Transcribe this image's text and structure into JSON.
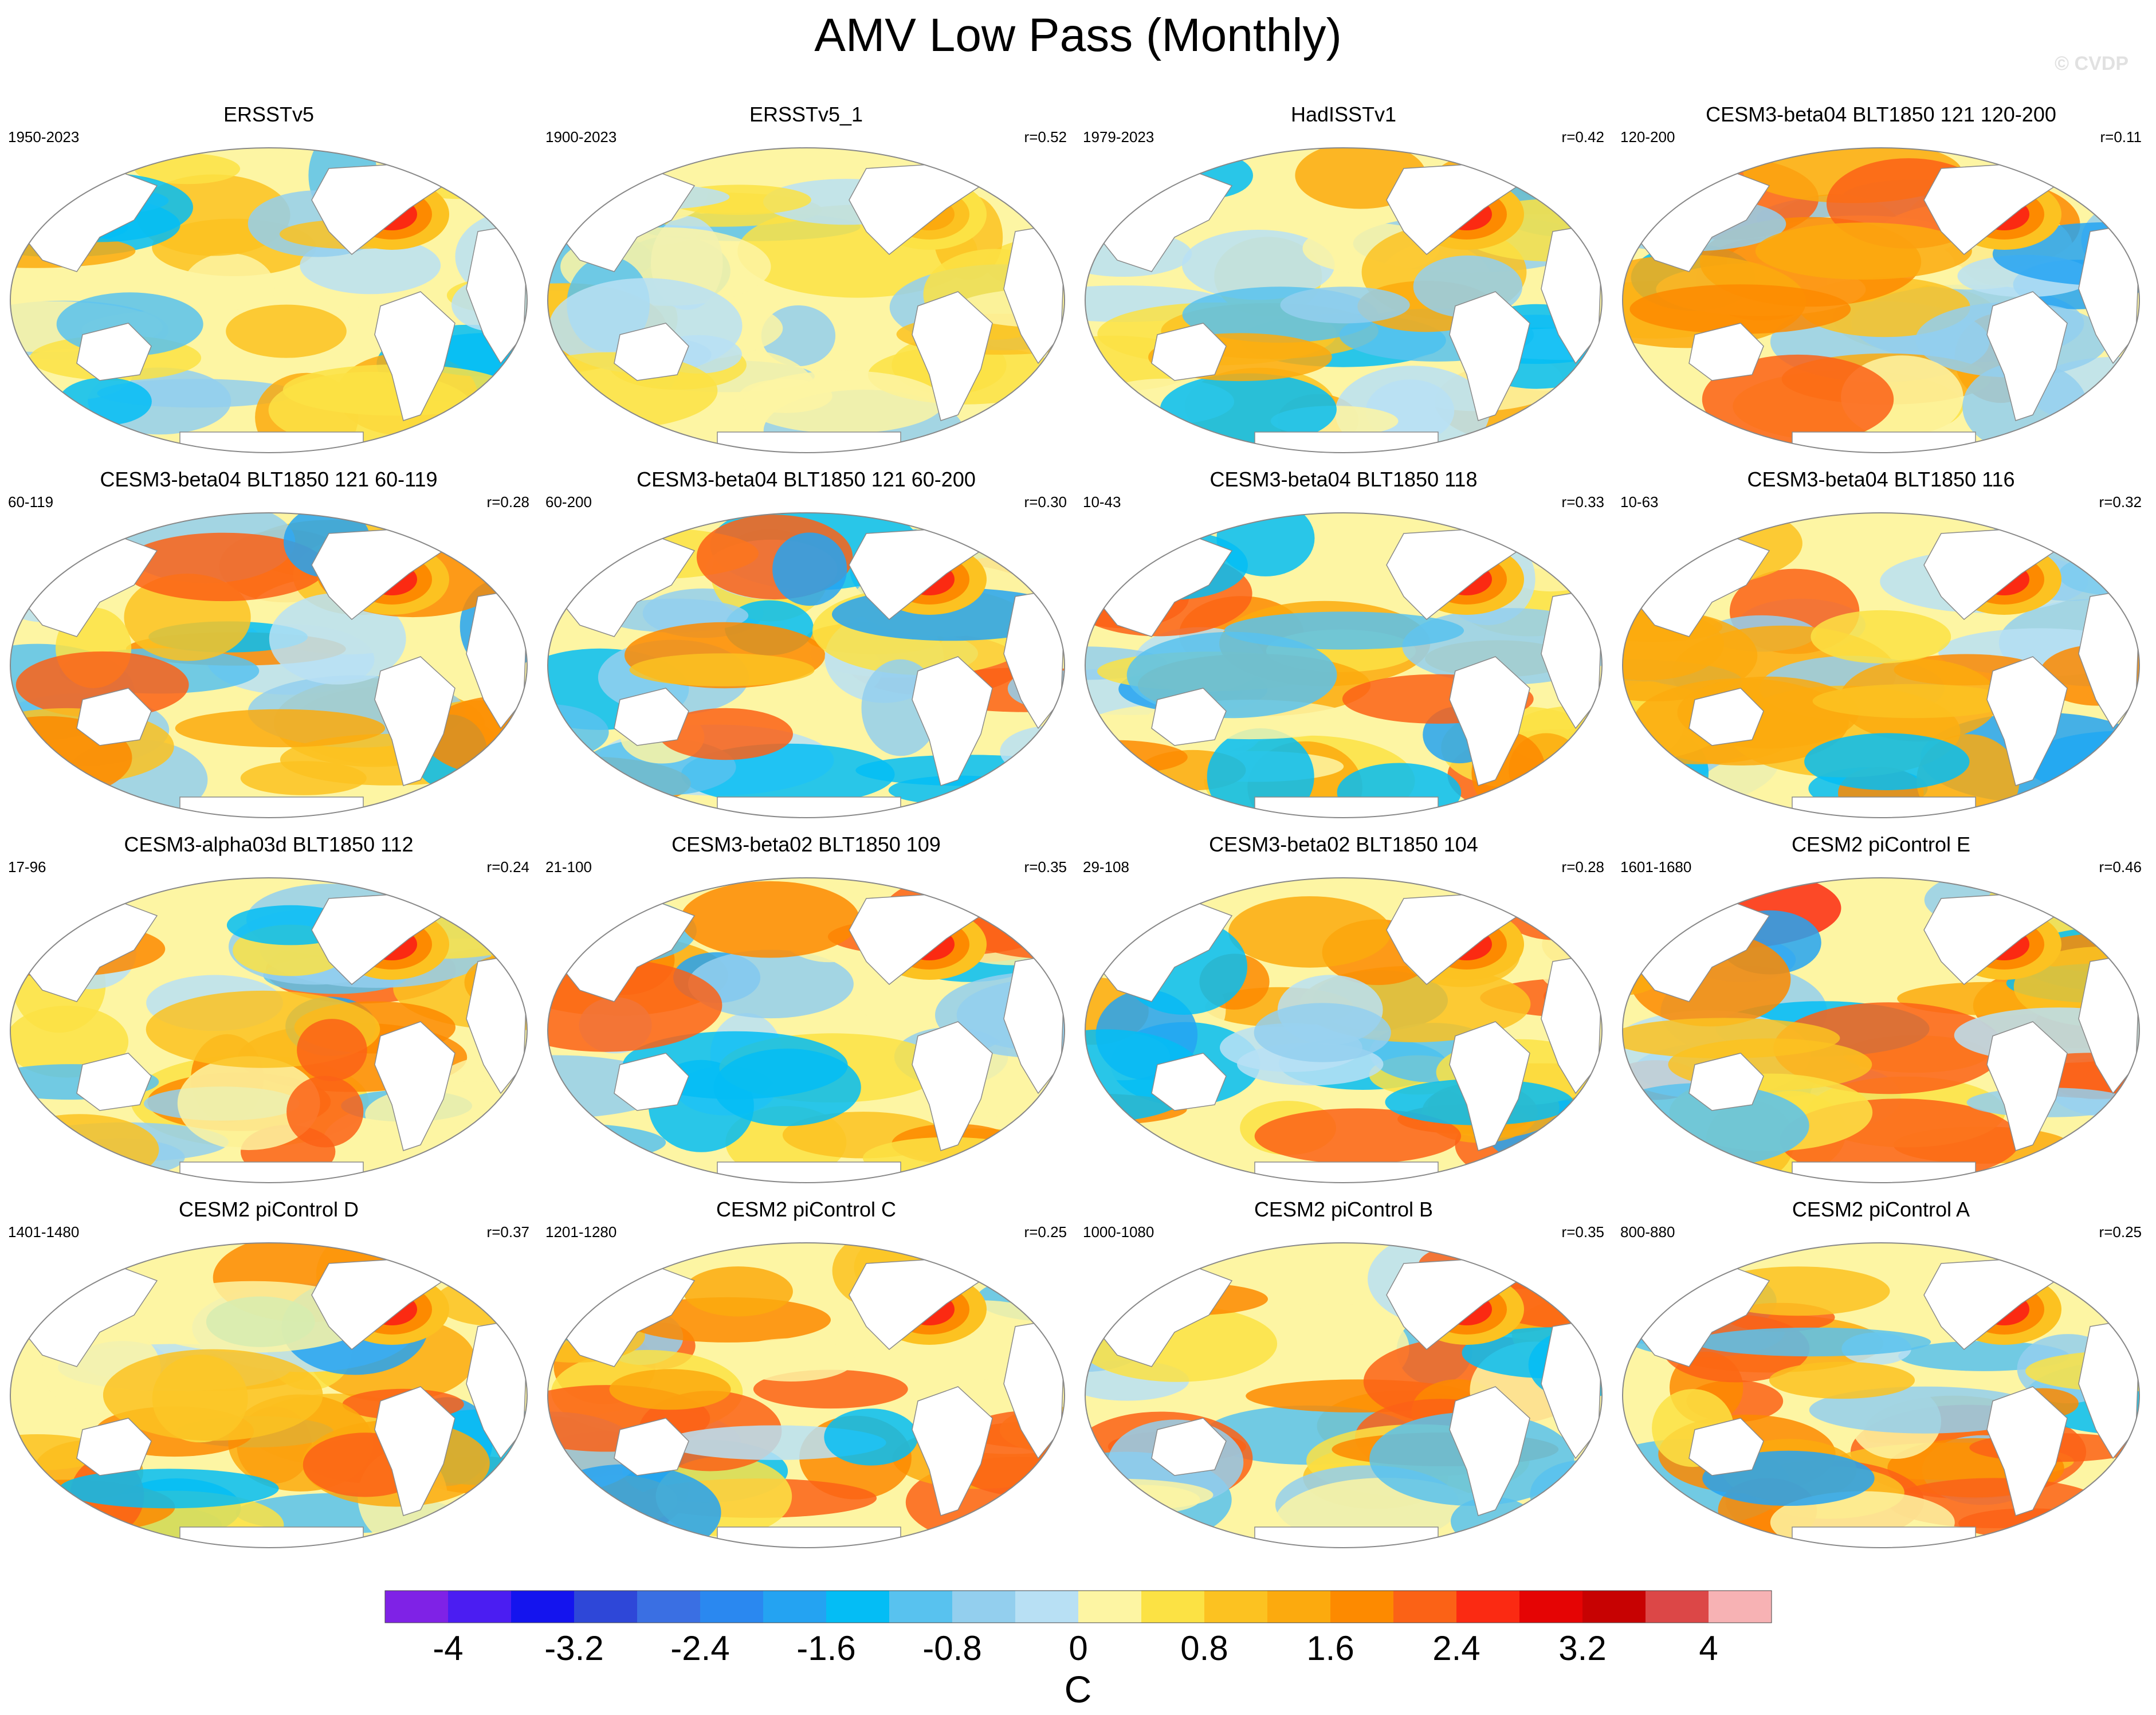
{
  "chart_data": {
    "type": "heatmap",
    "title": "AMV Low Pass (Monthly)",
    "watermark": "© CVDP",
    "projection": "Robinson (Pacific-centered global SST map)",
    "colorbar": {
      "label": "C",
      "range": [
        -4.4,
        4.4
      ],
      "interval": 0.4,
      "tick_labels": [
        "-4",
        "-3.2",
        "-2.4",
        "-1.6",
        "-0.8",
        "0",
        "0.8",
        "1.6",
        "2.4",
        "3.2",
        "4"
      ],
      "tick_values": [
        -4,
        -3.2,
        -2.4,
        -1.6,
        -0.8,
        0,
        0.8,
        1.6,
        2.4,
        3.2,
        4
      ],
      "colors": [
        "#7f22e6",
        "#4b1df2",
        "#1414ee",
        "#2e47d8",
        "#3a6fe3",
        "#2a88f0",
        "#24a3f2",
        "#04bdf5",
        "#58c2ef",
        "#93cfee",
        "#b8e0f4",
        "#fdf5a3",
        "#fce244",
        "#fcc221",
        "#fcaa0e",
        "#fd8a00",
        "#fb6216",
        "#fb2a12",
        "#e50404",
        "#c70202",
        "#dc4747",
        "#f7b2b4"
      ]
    },
    "panels": [
      {
        "name": "ERSSTv5",
        "years": "1950-2023",
        "r": ""
      },
      {
        "name": "ERSSTv5_1",
        "years": "1900-2023",
        "r": "r=0.52"
      },
      {
        "name": "HadISSTv1",
        "years": "1979-2023",
        "r": "r=0.42"
      },
      {
        "name": "CESM3-beta04 BLT1850 121 120-200",
        "years": "120-200",
        "r": "r=0.11"
      },
      {
        "name": "CESM3-beta04 BLT1850 121 60-119",
        "years": "60-119",
        "r": "r=0.28"
      },
      {
        "name": "CESM3-beta04 BLT1850 121 60-200",
        "years": "60-200",
        "r": "r=0.30"
      },
      {
        "name": "CESM3-beta04 BLT1850 118",
        "years": "10-43",
        "r": "r=0.33"
      },
      {
        "name": "CESM3-beta04 BLT1850 116",
        "years": "10-63",
        "r": "r=0.32"
      },
      {
        "name": "CESM3-alpha03d BLT1850 112",
        "years": "17-96",
        "r": "r=0.24"
      },
      {
        "name": "CESM3-beta02 BLT1850 109",
        "years": "21-100",
        "r": "r=0.35"
      },
      {
        "name": "CESM3-beta02 BLT1850 104",
        "years": "29-108",
        "r": "r=0.28"
      },
      {
        "name": "CESM2 piControl E",
        "years": "1601-1680",
        "r": "r=0.46"
      },
      {
        "name": "CESM2 piControl D",
        "years": "1401-1480",
        "r": "r=0.37"
      },
      {
        "name": "CESM2 piControl C",
        "years": "1201-1280",
        "r": "r=0.25"
      },
      {
        "name": "CESM2 piControl B",
        "years": "1000-1080",
        "r": "r=0.35"
      },
      {
        "name": "CESM2 piControl A",
        "years": "800-880",
        "r": "r=0.25"
      }
    ]
  }
}
